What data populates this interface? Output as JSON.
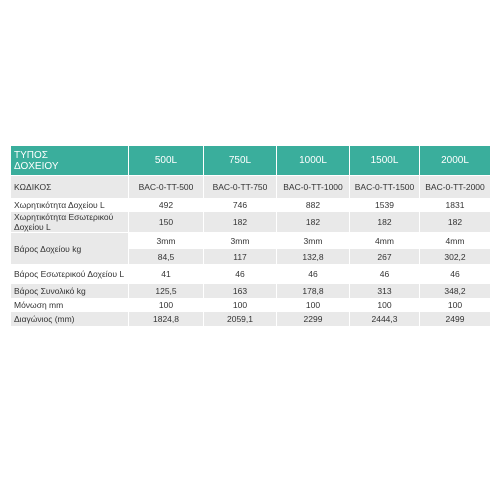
{
  "table": {
    "header": [
      "ΤΥΠΟΣ ΔΟΧΕΙΟΥ",
      "500L",
      "750L",
      "1000L",
      "1500L",
      "2000L"
    ],
    "rows": [
      {
        "label": "ΚΩΔΙΚΟΣ",
        "values": [
          "BAC-0-TT-500",
          "BAC-0-TT-750",
          "BAC-0-TT-1000",
          "BAC-0-TT-1500",
          "BAC-0-TT-2000"
        ]
      },
      {
        "label": "Χωρητικότητα Δοχείου L",
        "values": [
          "492",
          "746",
          "882",
          "1539",
          "1831"
        ]
      },
      {
        "label": "Χωρητικότητα Εσωτερικού Δοχείου L",
        "values": [
          "150",
          "182",
          "182",
          "182",
          "182"
        ]
      },
      {
        "label": "Βάρος Δοχείου kg",
        "thickness": [
          "3mm",
          "3mm",
          "3mm",
          "4mm",
          "4mm"
        ],
        "values": [
          "84,5",
          "117",
          "132,8",
          "267",
          "302,2"
        ]
      },
      {
        "label": "Βάρος Εσωτερικού Δοχείου L",
        "values": [
          "41",
          "46",
          "46",
          "46",
          "46"
        ]
      },
      {
        "label": "Βάρος Συνολικό kg",
        "values": [
          "125,5",
          "163",
          "178,8",
          "313",
          "348,2"
        ]
      },
      {
        "label": "Μόνωση mm",
        "values": [
          "100",
          "100",
          "100",
          "100",
          "100"
        ]
      },
      {
        "label": "Διαγώνιος (mm)",
        "values": [
          "1824,8",
          "2059,1",
          "2299",
          "2444,3",
          "2499"
        ]
      }
    ]
  }
}
